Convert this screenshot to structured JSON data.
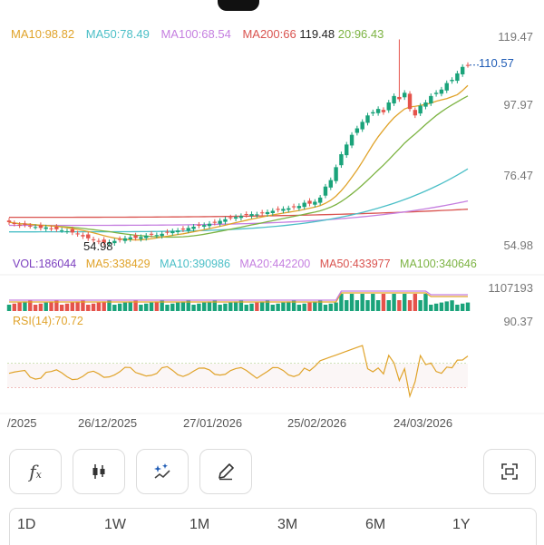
{
  "ma_legend": [
    {
      "text": "MA10:98.82",
      "color": "#e0a32a"
    },
    {
      "text": "MA50:78.49",
      "color": "#4bbfc7"
    },
    {
      "text": "MA100:68.54",
      "color": "#c57fe0"
    },
    {
      "text": "MA200:66",
      "color": "#d9534f"
    },
    {
      "text": "119.48",
      "color": "#222222"
    },
    {
      "text": "20:96.43",
      "color": "#7cb342"
    }
  ],
  "price_axis": [
    "119.47",
    "97.97",
    "76.47",
    "54.98"
  ],
  "current_price": "110.57",
  "low_annotation": "54.98",
  "vol_legend": [
    {
      "text": "VOL:186044",
      "color": "#7b3fbf"
    },
    {
      "text": "MA5:338429",
      "color": "#e0a32a"
    },
    {
      "text": "MA10:390986",
      "color": "#4bbfc7"
    },
    {
      "text": "MA20:442200",
      "color": "#c57fe0"
    },
    {
      "text": "MA50:433977",
      "color": "#d9534f"
    },
    {
      "text": "MA100:340646",
      "color": "#7cb342"
    }
  ],
  "vol_axis": "1107193",
  "rsi_label": "RSI(14):70.72",
  "rsi_axis": "90.37",
  "dates": [
    "/2025",
    "26/12/2025",
    "27/01/2026",
    "25/02/2026",
    "24/03/2026"
  ],
  "tools": [
    {
      "icon": "function-icon",
      "glyph": "𝑓ₓ"
    },
    {
      "icon": "candlestick-icon",
      "glyph": ""
    },
    {
      "icon": "magic-wand-icon",
      "glyph": ""
    },
    {
      "icon": "pencil-icon",
      "glyph": ""
    },
    {
      "icon": "fullscreen-icon",
      "glyph": ""
    }
  ],
  "tabs": [
    "1D",
    "1W",
    "1M",
    "3M",
    "6M",
    "1Y"
  ],
  "colors": {
    "up": "#1aa37a",
    "down": "#e5534b",
    "ma10": "#e0a32a",
    "ma20": "#7cb342",
    "ma50": "#4bbfc7",
    "ma100": "#c57fe0",
    "ma200": "#d9534f",
    "rsi": "#e0a32a"
  },
  "chart_data": {
    "type": "candlestick",
    "x_labels": [
      "26/12/2025",
      "27/01/2026",
      "25/02/2026",
      "24/03/2026"
    ],
    "ylim": [
      54.98,
      119.47
    ],
    "close": [
      62,
      61.5,
      61,
      61.2,
      60.8,
      60.5,
      60.2,
      60.4,
      60,
      59.8,
      59.5,
      59.2,
      58.8,
      58.3,
      57.6,
      57,
      56.5,
      56,
      55.6,
      55.8,
      56.2,
      56.5,
      57,
      57.3,
      57.1,
      57.4,
      57.8,
      58.1,
      58,
      58.4,
      58.9,
      59.2,
      59.4,
      59.7,
      60.2,
      60.6,
      60.9,
      61.1,
      61.5,
      61.8,
      62.4,
      62.9,
      63.4,
      63.6,
      63.9,
      64.2,
      64.5,
      64.4,
      64.8,
      65.1,
      65.5,
      65.8,
      66.1,
      66.3,
      66.6,
      67,
      68,
      67.7,
      68.3,
      69.6,
      73,
      75,
      79,
      83,
      86,
      89,
      91,
      93,
      95,
      96,
      97,
      96,
      99,
      101,
      100,
      102,
      97,
      95,
      98,
      99,
      101,
      102,
      103,
      105,
      106,
      108,
      110,
      110.57
    ],
    "ma_last": {
      "MA10": 98.82,
      "MA20": 96.43,
      "MA50": 78.49,
      "MA100": 68.54,
      "MA200": 66
    },
    "volume_max": 1107193,
    "rsi_last": 70.72,
    "rsi_top": 90.37
  }
}
